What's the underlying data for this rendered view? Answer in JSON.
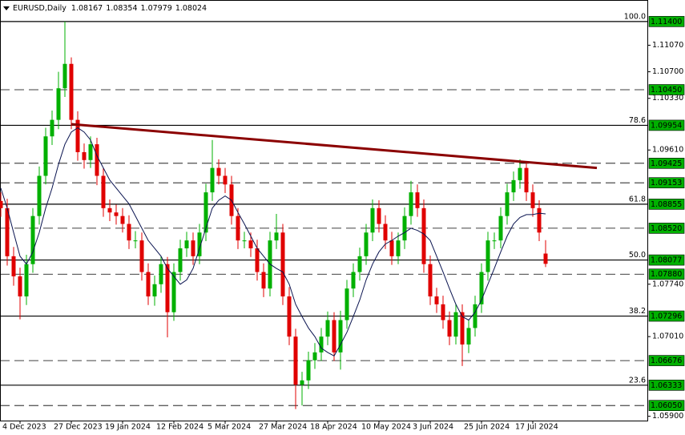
{
  "chart_data": {
    "type": "candlestick",
    "symbol": "EURUSD,Daily",
    "up_color": "#00b000",
    "down_color": "#e00000",
    "categories": [
      null,
      null,
      null,
      "4 Dec 2023",
      null,
      null,
      null,
      null,
      null,
      null,
      null,
      "27 Dec 2023",
      null,
      null,
      null,
      null,
      null,
      null,
      null,
      "19 Jan 2024",
      null,
      null,
      null,
      null,
      null,
      null,
      null,
      "12 Feb 2024",
      null,
      null,
      null,
      null,
      null,
      null,
      null,
      "5 Mar 2024",
      null,
      null,
      null,
      null,
      null,
      null,
      null,
      "27 Mar 2024",
      null,
      null,
      null,
      null,
      null,
      null,
      null,
      "18 Apr 2024",
      null,
      null,
      null,
      null,
      null,
      null,
      null,
      "10 May 2024",
      null,
      null,
      null,
      null,
      null,
      null,
      null,
      "3 Jun 2024",
      null,
      null,
      null,
      null,
      null,
      null,
      null,
      "25 Jun 2024",
      null,
      null,
      null,
      null,
      null,
      null,
      null,
      "17 Jul 2024",
      null,
      null,
      null,
      null,
      null,
      null,
      null,
      null,
      null,
      null
    ],
    "open": [
      1.089,
      1.088,
      1.0813,
      1.0785,
      1.0757,
      1.0802,
      1.0869,
      1.0925,
      1.098,
      1.1003,
      1.1047,
      1.1081,
      1.1003,
      1.0958,
      1.0947,
      1.0969,
      1.0925,
      1.088,
      1.0874,
      1.0869,
      1.0858,
      1.0835,
      1.0835,
      1.0791,
      1.0757,
      1.0774,
      1.0802,
      1.0735,
      1.0791,
      1.0824,
      1.0835,
      1.0813,
      1.0846,
      1.0902,
      1.0936,
      1.0925,
      1.0913,
      1.0869,
      1.0835,
      1.0835,
      1.0824,
      1.0791,
      1.0768,
      1.0835,
      1.0846,
      1.0757,
      1.0701,
      1.0634,
      1.064,
      1.0668,
      1.0679,
      1.0701,
      1.0724,
      1.0679,
      1.0724,
      1.0768,
      1.0791,
      1.0813,
      1.0846,
      1.088,
      1.0858,
      1.0835,
      1.0813,
      1.0835,
      1.0869,
      1.0902,
      1.088,
      1.0802,
      1.0757,
      1.0746,
      1.0724,
      1.0701,
      1.0735,
      1.069,
      1.0713,
      1.0746,
      1.0791,
      1.0835,
      1.0835,
      1.0869,
      1.0902,
      1.0919,
      1.0936,
      1.0902,
      1.088,
      1.08167,
      null,
      null,
      null,
      null,
      null,
      null,
      null,
      null
    ],
    "high": [
      1.0902,
      1.0893,
      1.0826,
      1.0797,
      1.0815,
      1.088,
      1.0938,
      1.0992,
      1.1016,
      1.107,
      1.114,
      1.109,
      1.1015,
      1.097,
      1.098,
      1.0978,
      1.0936,
      1.0892,
      1.0885,
      1.088,
      1.087,
      1.0848,
      1.0846,
      1.0803,
      1.0786,
      1.0813,
      1.0812,
      1.0803,
      1.0836,
      1.0847,
      1.0846,
      1.0858,
      1.0914,
      1.0975,
      1.0948,
      1.0936,
      1.0925,
      1.088,
      1.0847,
      1.0846,
      1.0836,
      1.0803,
      1.0847,
      1.0872,
      1.0858,
      1.077,
      1.0712,
      1.0652,
      1.068,
      1.0692,
      1.0713,
      1.0736,
      1.0735,
      1.0737,
      1.078,
      1.0803,
      1.0825,
      1.0858,
      1.0892,
      1.0891,
      1.087,
      1.0847,
      1.0846,
      1.0881,
      1.0918,
      1.0913,
      1.0892,
      1.0814,
      1.0769,
      1.0758,
      1.0736,
      1.0747,
      1.0746,
      1.0725,
      1.0758,
      1.0803,
      1.0847,
      1.0846,
      1.0881,
      1.0914,
      1.0931,
      1.0948,
      1.0945,
      1.0913,
      1.0891,
      1.08354,
      null,
      null,
      null,
      null,
      null,
      null,
      null,
      null
    ],
    "low": [
      1.0868,
      1.08,
      1.0772,
      1.0725,
      1.0745,
      1.079,
      1.0857,
      1.0913,
      1.0968,
      1.099,
      1.1035,
      1.099,
      1.0946,
      1.0935,
      1.0936,
      1.0912,
      1.0868,
      1.0862,
      1.0857,
      1.0846,
      1.0823,
      1.0824,
      1.0779,
      1.0745,
      1.0744,
      1.0762,
      1.07,
      1.0723,
      1.0779,
      1.0812,
      1.0801,
      1.0802,
      1.0834,
      1.089,
      1.0913,
      1.0901,
      1.0857,
      1.0823,
      1.0824,
      1.0812,
      1.0779,
      1.0756,
      1.0757,
      1.0823,
      1.0745,
      1.0689,
      1.06,
      1.0605,
      1.0628,
      1.0656,
      1.0667,
      1.0689,
      1.0667,
      1.0655,
      1.0712,
      1.0756,
      1.0779,
      1.0801,
      1.0834,
      1.0846,
      1.0823,
      1.0801,
      1.0802,
      1.0823,
      1.0857,
      1.0868,
      1.079,
      1.0745,
      1.0734,
      1.0712,
      1.0689,
      1.069,
      1.066,
      1.0678,
      1.0701,
      1.0734,
      1.0779,
      1.0823,
      1.0824,
      1.0857,
      1.089,
      1.0907,
      1.089,
      1.0868,
      1.0834,
      1.07979,
      null,
      null,
      null,
      null,
      null,
      null,
      null,
      null
    ],
    "close": [
      1.088,
      1.0813,
      1.0785,
      1.0757,
      1.0802,
      1.0869,
      1.0925,
      1.098,
      1.1003,
      1.1047,
      1.1081,
      1.1003,
      1.0958,
      1.0947,
      1.0969,
      1.0925,
      1.088,
      1.0874,
      1.0869,
      1.0858,
      1.0835,
      1.0835,
      1.0791,
      1.0757,
      1.0774,
      1.0802,
      1.0735,
      1.0791,
      1.0824,
      1.0835,
      1.0813,
      1.0846,
      1.0902,
      1.0936,
      1.0925,
      1.0913,
      1.0869,
      1.0835,
      1.0835,
      1.0824,
      1.0791,
      1.0768,
      1.0835,
      1.0846,
      1.0757,
      1.0701,
      1.0634,
      1.064,
      1.0668,
      1.0679,
      1.0701,
      1.0724,
      1.0679,
      1.0724,
      1.0768,
      1.0791,
      1.0813,
      1.0846,
      1.088,
      1.0858,
      1.0835,
      1.0813,
      1.0835,
      1.0869,
      1.0902,
      1.088,
      1.0802,
      1.0757,
      1.0746,
      1.0724,
      1.0701,
      1.0735,
      1.069,
      1.0713,
      1.0746,
      1.0791,
      1.0835,
      1.0835,
      1.0869,
      1.0902,
      1.0919,
      1.0936,
      1.0902,
      1.088,
      1.0846,
      1.08024,
      null,
      null,
      null,
      null,
      null,
      null,
      null,
      null
    ],
    "ma": {
      "color": "#0a1450",
      "values": [
        1.0908,
        1.088,
        1.0846,
        1.0813,
        1.0802,
        1.0819,
        1.0846,
        1.088,
        1.0908,
        1.0941,
        1.0969,
        1.0986,
        1.0992,
        1.0986,
        1.0975,
        1.0953,
        1.0936,
        1.0919,
        1.0908,
        1.0897,
        1.0886,
        1.0869,
        1.0852,
        1.0835,
        1.0824,
        1.0813,
        1.0796,
        1.0785,
        1.0774,
        1.078,
        1.0796,
        1.0824,
        1.0852,
        1.088,
        1.0891,
        1.0897,
        1.0891,
        1.0874,
        1.0858,
        1.0841,
        1.0824,
        1.0813,
        1.0802,
        1.0796,
        1.0791,
        1.0774,
        1.0746,
        1.0729,
        1.0713,
        1.0701,
        1.0685,
        1.0679,
        1.0674,
        1.069,
        1.0707,
        1.0729,
        1.0752,
        1.078,
        1.0802,
        1.0819,
        1.083,
        1.0835,
        1.0841,
        1.0846,
        1.0852,
        1.0849,
        1.0844,
        1.0835,
        1.0813,
        1.0791,
        1.0768,
        1.0746,
        1.0729,
        1.0724,
        1.0735,
        1.0752,
        1.0774,
        1.0796,
        1.0819,
        1.0841,
        1.0858,
        1.0867,
        1.0871,
        1.0871,
        1.0873,
        1.0872,
        null,
        null,
        null,
        null,
        null,
        null,
        null,
        null
      ]
    },
    "trendline": {
      "color": "#8b0000",
      "x": [
        11,
        93
      ],
      "values": [
        1.0997,
        1.0936
      ]
    },
    "levels": [
      {
        "value": 1.114,
        "label": "1.11400",
        "fib": "100.0",
        "style": "solid"
      },
      {
        "value": 1.1045,
        "label": "1.10450",
        "style": "dashed"
      },
      {
        "value": 1.09954,
        "label": "1.09954",
        "fib": "78.6",
        "style": "solid"
      },
      {
        "value": 1.09425,
        "label": "1.09425",
        "style": "dashed"
      },
      {
        "value": 1.09153,
        "label": "1.09153",
        "style": "dashed"
      },
      {
        "value": 1.08855,
        "label": "1.08855",
        "fib": "61.8",
        "style": "solid"
      },
      {
        "value": 1.0852,
        "label": "1.08520",
        "style": "dashed"
      },
      {
        "value": 1.08077,
        "label": "1.08077",
        "fib": "50.0",
        "style": "solid"
      },
      {
        "value": 1.0788,
        "label": "1.07880",
        "style": "dashed"
      },
      {
        "value": 1.07296,
        "label": "1.07296",
        "fib": "38.2",
        "style": "solid"
      },
      {
        "value": 1.06676,
        "label": "1.06676",
        "style": "dashed"
      },
      {
        "value": 1.06333,
        "label": "1.06333",
        "fib": "23.6",
        "style": "solid"
      },
      {
        "value": 1.0605,
        "label": "1.06050",
        "style": "dashed"
      }
    ],
    "ylim": [
      1.0584,
      1.117
    ],
    "yticks": [
      {
        "value": 1.1107,
        "label": "1.11070"
      },
      {
        "value": 1.107,
        "label": "1.10700"
      },
      {
        "value": 1.1033,
        "label": "1.10330"
      },
      {
        "value": 1.0961,
        "label": "1.09610"
      },
      {
        "value": 1.0774,
        "label": "1.07740"
      },
      {
        "value": 1.0701,
        "label": "1.07010"
      },
      {
        "value": 1.059,
        "label": "1.05900"
      }
    ]
  }
}
